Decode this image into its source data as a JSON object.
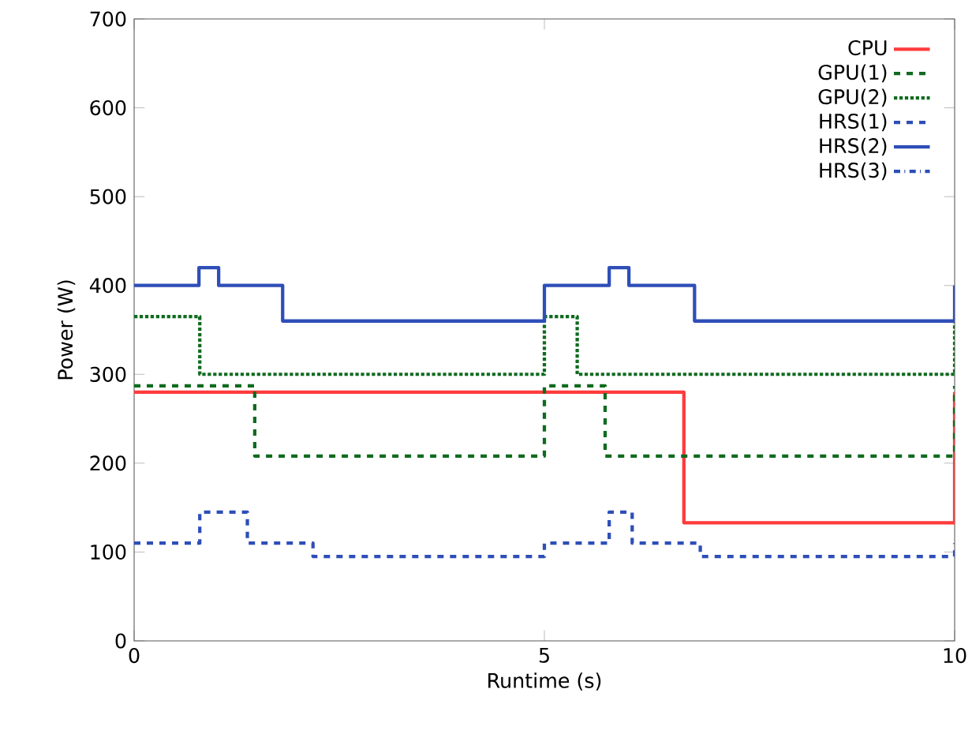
{
  "chart_data": {
    "type": "step",
    "xlabel": "Runtime (s)",
    "ylabel": "Power (W)",
    "xlim": [
      0,
      10
    ],
    "xticks": [
      0,
      5,
      10
    ],
    "ylim": [
      0,
      700
    ],
    "yticks": [
      0,
      100,
      200,
      300,
      400,
      500,
      600,
      700
    ],
    "grid": false,
    "legend": "top right",
    "marker": "none",
    "series": [
      {
        "name": "CPU",
        "color": "#ff3b3b",
        "line_style": "solid",
        "x": [
          0,
          6.7,
          10
        ],
        "values": [
          280,
          133,
          280
        ]
      },
      {
        "name": "GPU(1)",
        "color": "#0f6b1f",
        "line_style": "dashed",
        "x": [
          0,
          1.47,
          5,
          5.74,
          10
        ],
        "values": [
          287,
          208,
          287,
          208,
          287
        ]
      },
      {
        "name": "GPU(2)",
        "color": "#0f6b1f",
        "line_style": "dotted",
        "x": [
          0,
          0.8,
          5,
          5.4,
          10
        ],
        "values": [
          365,
          300,
          365,
          300,
          365
        ]
      },
      {
        "name": "HRS(1)",
        "color": "#2e4eb8",
        "line_style": "dashed",
        "x": [
          0,
          0.8,
          1.38,
          2.18,
          5,
          5.79,
          6.07,
          6.9,
          10
        ],
        "values": [
          110,
          145,
          110,
          95,
          110,
          145,
          110,
          95,
          110
        ]
      },
      {
        "name": "HRS(2)",
        "color": "#2e4eb8",
        "line_style": "solid",
        "x": [
          0,
          0.79,
          1.03,
          1.81,
          5,
          5.79,
          6.03,
          6.83,
          10
        ],
        "values": [
          400,
          420,
          400,
          360,
          400,
          420,
          400,
          360,
          400
        ]
      },
      {
        "name": "HRS(3)",
        "color": "#2e4eb8",
        "line_style": "dashdot",
        "values": [
          null
        ]
      }
    ]
  }
}
